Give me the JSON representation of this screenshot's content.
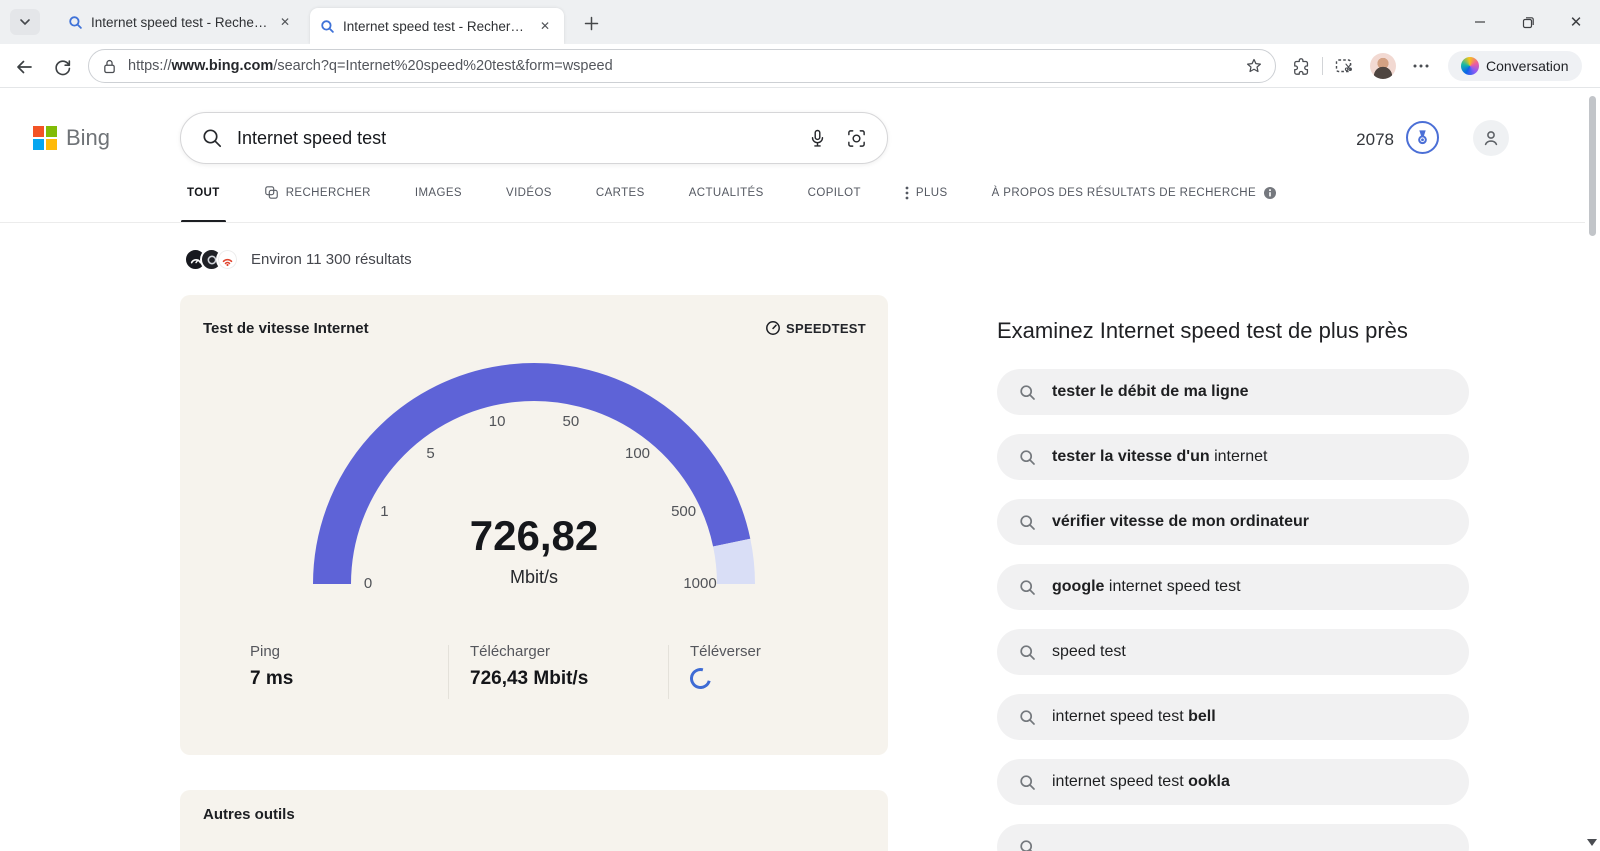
{
  "browser": {
    "tabs": [
      {
        "label": "Internet speed test - Recherche"
      },
      {
        "label": "Internet speed test - Recherche"
      }
    ],
    "url_parts": {
      "scheme": "https://",
      "domain": "www.bing.com",
      "path": "/search?q=Internet%20speed%20test&form=wspeed"
    },
    "copilot_button": "Conversation"
  },
  "header": {
    "logo": "Bing",
    "search_query": "Internet speed test",
    "rewards_points": "2078"
  },
  "nav": {
    "tabs": [
      {
        "label": "TOUT"
      },
      {
        "label": "RECHERCHER"
      },
      {
        "label": "IMAGES"
      },
      {
        "label": "VIDÉOS"
      },
      {
        "label": "CARTES"
      },
      {
        "label": "ACTUALITÉS"
      },
      {
        "label": "COPILOT"
      },
      {
        "label": "PLUS"
      },
      {
        "label": "À PROPOS DES RÉSULTATS DE RECHERCHE"
      }
    ]
  },
  "results_meta": {
    "count_text": "Environ 11 300 résultats"
  },
  "speedtest_card": {
    "title": "Test de vitesse Internet",
    "brand": "SPEEDTEST",
    "gauge": {
      "value_display": "726,82",
      "value": 726.82,
      "unit": "Mbit/s",
      "tick_labels": [
        "0",
        "1",
        "5",
        "10",
        "50",
        "100",
        "500",
        "1000"
      ],
      "tick_values": [
        0,
        1,
        5,
        10,
        50,
        100,
        500,
        1000
      ],
      "arc_color": "#5e63d7",
      "arc_rest_color": "#d9def6"
    },
    "stats": [
      {
        "label": "Ping",
        "value": "7 ms"
      },
      {
        "label": "Télécharger",
        "value": "726,43 Mbit/s"
      },
      {
        "label": "Téléverser",
        "value": ""
      }
    ]
  },
  "other_tools_card": {
    "title": "Autres outils"
  },
  "related": {
    "heading": "Examinez Internet speed test de plus près",
    "items": [
      {
        "segments": [
          {
            "text": "tester le débit de ma ligne",
            "bold": true
          }
        ]
      },
      {
        "segments": [
          {
            "text": "tester la vitesse d'un",
            "bold": true
          },
          {
            "text": " internet",
            "bold": false
          }
        ]
      },
      {
        "segments": [
          {
            "text": "vérifier vitesse de mon ordinateur",
            "bold": true
          }
        ]
      },
      {
        "segments": [
          {
            "text": "google",
            "bold": true
          },
          {
            "text": " internet speed test",
            "bold": false
          }
        ]
      },
      {
        "segments": [
          {
            "text": "speed test",
            "bold": false
          }
        ]
      },
      {
        "segments": [
          {
            "text": "internet speed test ",
            "bold": false
          },
          {
            "text": "bell",
            "bold": true
          }
        ]
      },
      {
        "segments": [
          {
            "text": "internet speed test ",
            "bold": false
          },
          {
            "text": "ookla",
            "bold": true
          }
        ]
      }
    ]
  }
}
